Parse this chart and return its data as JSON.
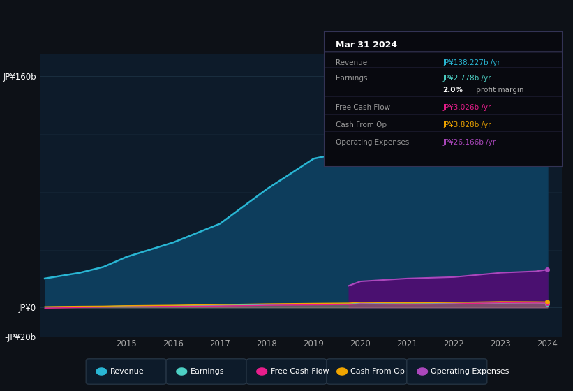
{
  "background_color": "#0d1117",
  "plot_bg_color": "#0d1b2a",
  "years": [
    2013.25,
    2014,
    2014.5,
    2015,
    2016,
    2017,
    2018,
    2019,
    2019.75,
    2020,
    2020.5,
    2021,
    2021.5,
    2022,
    2023,
    2023.75,
    2024
  ],
  "revenue": [
    20,
    24,
    28,
    35,
    45,
    58,
    82,
    103,
    108,
    115,
    114,
    108,
    110,
    118,
    148,
    150,
    138
  ],
  "earnings": [
    0.3,
    0.5,
    0.7,
    1.0,
    1.2,
    1.5,
    2.0,
    2.3,
    2.5,
    2.8,
    2.6,
    2.5,
    2.6,
    2.7,
    3.0,
    3.1,
    2.778
  ],
  "free_cash_flow": [
    -0.5,
    0.0,
    0.3,
    0.5,
    0.8,
    1.0,
    1.5,
    1.8,
    2.0,
    2.5,
    2.3,
    2.2,
    2.3,
    2.5,
    3.2,
    3.1,
    3.026
  ],
  "cash_from_op": [
    0.5,
    0.8,
    0.9,
    1.2,
    1.5,
    2.0,
    2.5,
    2.8,
    3.0,
    3.5,
    3.3,
    3.2,
    3.3,
    3.5,
    4.0,
    3.9,
    3.828
  ],
  "op_expenses_years": [
    2019.75,
    2020,
    2020.5,
    2021,
    2021.5,
    2022,
    2023,
    2023.75,
    2024
  ],
  "op_expenses": [
    15,
    18,
    19,
    20,
    20.5,
    21,
    24,
    25,
    26.166
  ],
  "revenue_color": "#29b6d4",
  "revenue_fill": "#0d3d5c",
  "earnings_color": "#4dd0c4",
  "free_cash_flow_color": "#e91e8c",
  "cash_from_op_color": "#f0a500",
  "op_expenses_color": "#ab47bc",
  "op_expenses_fill": "#4a1070",
  "ylim_min": -20,
  "ylim_max": 175,
  "yticks": [
    -20,
    0,
    160
  ],
  "ytick_labels": [
    "-JP¥20b",
    "JP¥0",
    "JP¥160b"
  ],
  "xtick_years": [
    2015,
    2016,
    2017,
    2018,
    2019,
    2020,
    2021,
    2022,
    2023,
    2024
  ],
  "grid_color": "#1a2e3f",
  "tooltip_title": "Mar 31 2024",
  "tooltip_rows": [
    {
      "label": "Revenue",
      "value": "JP¥138.227b /yr",
      "value_color": "#29b6d4",
      "extra": null
    },
    {
      "label": "Earnings",
      "value": "JP¥2.778b /yr",
      "value_color": "#4dd0c4",
      "extra": null
    },
    {
      "label": "",
      "value": "2.0%",
      "value_color": "#ffffff",
      "extra": " profit margin"
    },
    {
      "label": "Free Cash Flow",
      "value": "JP¥3.026b /yr",
      "value_color": "#e91e8c",
      "extra": null
    },
    {
      "label": "Cash From Op",
      "value": "JP¥3.828b /yr",
      "value_color": "#f0a500",
      "extra": null
    },
    {
      "label": "Operating Expenses",
      "value": "JP¥26.166b /yr",
      "value_color": "#ab47bc",
      "extra": null
    }
  ],
  "legend_items": [
    {
      "label": "Revenue",
      "color": "#29b6d4"
    },
    {
      "label": "Earnings",
      "color": "#4dd0c4"
    },
    {
      "label": "Free Cash Flow",
      "color": "#e91e8c"
    },
    {
      "label": "Cash From Op",
      "color": "#f0a500"
    },
    {
      "label": "Operating Expenses",
      "color": "#ab47bc"
    }
  ]
}
